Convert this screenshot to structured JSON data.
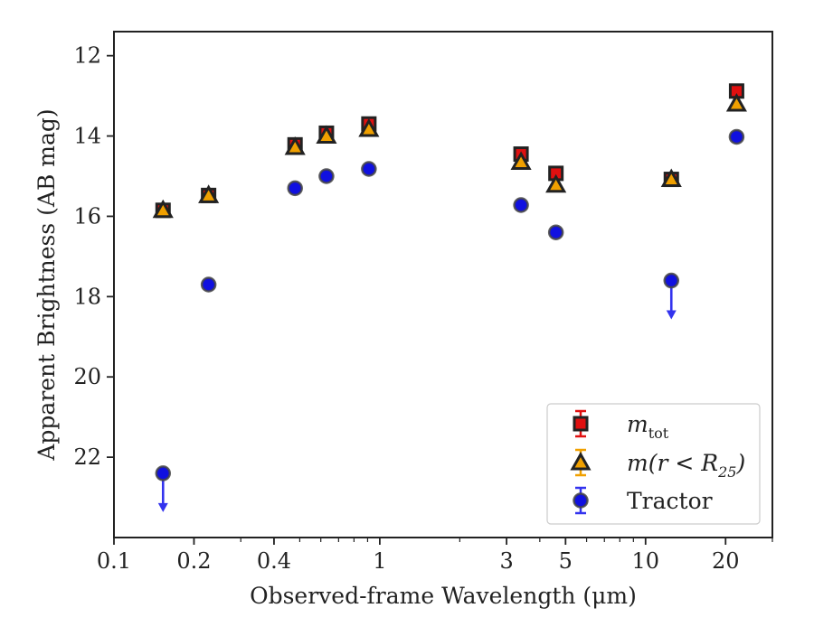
{
  "chart_data": {
    "type": "scatter",
    "xlabel": "Observed-frame Wavelength (μm)",
    "ylabel": "Apparent Brightness (AB mag)",
    "xscale": "log",
    "xlim": [
      0.1,
      30
    ],
    "ylim": [
      24,
      11.4
    ],
    "y_inverted": true,
    "xticks": [
      {
        "value": 0.1,
        "label": "0.1"
      },
      {
        "value": 0.2,
        "label": "0.2"
      },
      {
        "value": 0.4,
        "label": "0.4"
      },
      {
        "value": 1,
        "label": "1"
      },
      {
        "value": 3,
        "label": "3"
      },
      {
        "value": 5,
        "label": "5"
      },
      {
        "value": 10,
        "label": "10"
      },
      {
        "value": 20,
        "label": "20"
      }
    ],
    "yticks": [
      {
        "value": 12,
        "label": "12"
      },
      {
        "value": 14,
        "label": "14"
      },
      {
        "value": 16,
        "label": "16"
      },
      {
        "value": 18,
        "label": "18"
      },
      {
        "value": 20,
        "label": "20"
      },
      {
        "value": 22,
        "label": "22"
      }
    ],
    "grid": false,
    "legend_position": "bottom-right",
    "series": [
      {
        "name": "m_tot",
        "legend_main": "m",
        "legend_sub": "tot",
        "marker": "square",
        "color": "#e01010",
        "points": [
          {
            "x": 0.153,
            "y": 15.85
          },
          {
            "x": 0.227,
            "y": 15.48
          },
          {
            "x": 0.48,
            "y": 14.22
          },
          {
            "x": 0.63,
            "y": 13.93
          },
          {
            "x": 0.91,
            "y": 13.7
          },
          {
            "x": 3.4,
            "y": 14.45
          },
          {
            "x": 4.6,
            "y": 14.93
          },
          {
            "x": 12.5,
            "y": 15.08
          },
          {
            "x": 22,
            "y": 12.88
          }
        ]
      },
      {
        "name": "m(r < R25)",
        "legend_main": "m(r < R",
        "legend_sub": "25",
        "legend_tail": ")",
        "marker": "triangle",
        "color": "#f0a000",
        "points": [
          {
            "x": 0.153,
            "y": 15.85
          },
          {
            "x": 0.227,
            "y": 15.48
          },
          {
            "x": 0.48,
            "y": 14.28
          },
          {
            "x": 0.63,
            "y": 14.0
          },
          {
            "x": 0.91,
            "y": 13.83
          },
          {
            "x": 3.4,
            "y": 14.65
          },
          {
            "x": 4.6,
            "y": 15.22
          },
          {
            "x": 12.5,
            "y": 15.08
          },
          {
            "x": 22,
            "y": 13.2
          }
        ]
      },
      {
        "name": "Tractor",
        "legend_main": "Tractor",
        "marker": "circle",
        "color": "#1010e0",
        "points": [
          {
            "x": 0.153,
            "y": 22.4,
            "upper_limit": true
          },
          {
            "x": 0.227,
            "y": 17.7
          },
          {
            "x": 0.48,
            "y": 15.3
          },
          {
            "x": 0.63,
            "y": 15.0
          },
          {
            "x": 0.91,
            "y": 14.82
          },
          {
            "x": 3.4,
            "y": 15.72
          },
          {
            "x": 4.6,
            "y": 16.4
          },
          {
            "x": 12.5,
            "y": 17.6,
            "upper_limit": true
          },
          {
            "x": 22,
            "y": 14.02
          }
        ]
      }
    ]
  }
}
